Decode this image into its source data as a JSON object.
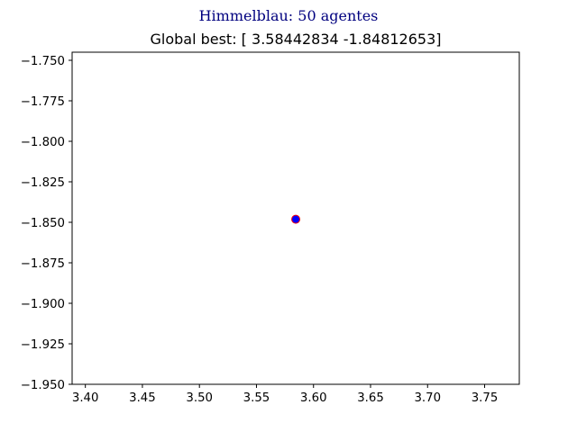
{
  "figure": {
    "suptitle": "Himmelblau: 50 agentes"
  },
  "chart_data": {
    "type": "scatter",
    "title": "Global best: [ 3.58442834 -1.84812653]",
    "xlabel": "",
    "ylabel": "",
    "xlim": [
      3.3884,
      3.7804
    ],
    "ylim": [
      -1.95,
      -1.745
    ],
    "grid": false,
    "xticks": [
      3.4,
      3.45,
      3.5,
      3.55,
      3.6,
      3.65,
      3.7,
      3.75
    ],
    "xtick_labels": [
      "3.40",
      "3.45",
      "3.50",
      "3.55",
      "3.60",
      "3.65",
      "3.70",
      "3.75"
    ],
    "yticks": [
      -1.75,
      -1.775,
      -1.8,
      -1.825,
      -1.85,
      -1.875,
      -1.9,
      -1.925,
      -1.95
    ],
    "ytick_labels": [
      "−1.750",
      "−1.775",
      "−1.800",
      "−1.825",
      "−1.850",
      "−1.875",
      "−1.900",
      "−1.925",
      "−1.950"
    ],
    "series": [
      {
        "points": [
          {
            "x": 3.58442834,
            "y": -1.84812653
          }
        ],
        "color": "#0000ff",
        "edgecolor": "#ff0000"
      }
    ]
  }
}
